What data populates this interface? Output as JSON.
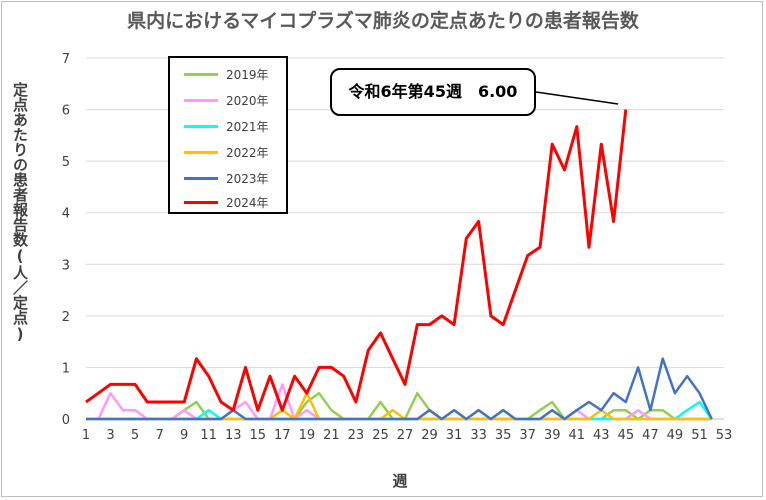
{
  "chart_data": {
    "type": "line",
    "title": "県内におけるマイコプラズマ肺炎の定点あたりの患者報告数",
    "xlabel": "週",
    "ylabel": "定点あたりの患者報告数(人／定点)",
    "ylim": [
      0,
      7
    ],
    "y_ticks": [
      "0",
      "1",
      "2",
      "3",
      "4",
      "5",
      "6",
      "7"
    ],
    "x_ticks": [
      "1",
      "3",
      "5",
      "7",
      "9",
      "11",
      "13",
      "15",
      "17",
      "19",
      "21",
      "23",
      "25",
      "27",
      "29",
      "31",
      "33",
      "35",
      "37",
      "39",
      "41",
      "43",
      "45",
      "47",
      "49",
      "51",
      "53"
    ],
    "x_range": [
      1,
      53
    ],
    "legend_position": "top-left",
    "annotation": "令和6年第45週　6.00",
    "series": [
      {
        "name": "2019年",
        "color": "#92d050",
        "values": [
          0,
          0,
          0,
          0,
          0,
          0,
          0,
          0,
          0.17,
          0.33,
          0,
          0,
          0,
          0,
          0,
          0,
          0,
          0,
          0.33,
          0.5,
          0.17,
          0,
          0,
          0,
          0.33,
          0,
          0,
          0.5,
          0.17,
          0,
          0,
          0,
          0,
          0,
          0,
          0,
          0,
          0.17,
          0.33,
          0,
          0,
          0,
          0,
          0.17,
          0.17,
          0,
          0.17,
          0.17,
          0,
          0,
          0,
          0
        ]
      },
      {
        "name": "2020年",
        "color": "#ff99ff",
        "values": [
          0,
          0,
          0.5,
          0.17,
          0.17,
          0,
          0,
          0,
          0.17,
          0,
          0,
          0,
          0.17,
          0.33,
          0,
          0,
          0.67,
          0,
          0.17,
          0,
          0,
          0,
          0,
          0,
          0,
          0,
          0,
          0,
          0,
          0,
          0,
          0,
          0,
          0,
          0,
          0,
          0,
          0,
          0,
          0,
          0.17,
          0,
          0,
          0,
          0,
          0.17,
          0,
          0,
          0,
          0,
          0,
          0
        ]
      },
      {
        "name": "2021年",
        "color": "#00ffff",
        "values": [
          0,
          0,
          0,
          0,
          0,
          0,
          0,
          0,
          0,
          0,
          0.17,
          0,
          0,
          0,
          0,
          0,
          0,
          0,
          0,
          0,
          0,
          0,
          0,
          0,
          0,
          0,
          0,
          0,
          0,
          0,
          0,
          0,
          0,
          0,
          0.17,
          0,
          0,
          0,
          0,
          0,
          0,
          0,
          0,
          0,
          0,
          0,
          0,
          0,
          0,
          0.17,
          0.33,
          0
        ]
      },
      {
        "name": "2022年",
        "color": "#ffc000",
        "values": [
          0,
          0,
          0,
          0,
          0,
          0,
          0,
          0,
          0,
          0,
          0,
          0,
          0,
          0,
          0,
          0,
          0.17,
          0,
          0.5,
          0,
          0,
          0,
          0,
          0,
          0,
          0.17,
          0,
          0,
          0,
          0,
          0,
          0,
          0,
          0,
          0,
          0,
          0,
          0,
          0,
          0,
          0,
          0,
          0.17,
          0,
          0,
          0,
          0,
          0,
          0,
          0,
          0,
          0
        ]
      },
      {
        "name": "2023年",
        "color": "#4472c4",
        "values": [
          0,
          0,
          0,
          0,
          0,
          0,
          0,
          0,
          0,
          0,
          0,
          0,
          0.17,
          0,
          0,
          0,
          0,
          0,
          0,
          0,
          0,
          0,
          0,
          0,
          0,
          0,
          0,
          0,
          0.17,
          0,
          0.17,
          0,
          0.17,
          0,
          0.17,
          0,
          0,
          0,
          0.17,
          0,
          0.17,
          0.33,
          0.17,
          0.5,
          0.33,
          1.0,
          0.17,
          1.17,
          0.5,
          0.83,
          0.5,
          0
        ]
      },
      {
        "name": "2024年",
        "color": "#ff0000",
        "values": [
          0.33,
          0.5,
          0.67,
          0.67,
          0.67,
          0.33,
          0.33,
          0.33,
          0.33,
          1.17,
          0.83,
          0.33,
          0.17,
          1.0,
          0.17,
          0.83,
          0.17,
          0.83,
          0.5,
          1.0,
          1.0,
          0.83,
          0.33,
          1.33,
          1.67,
          1.17,
          0.67,
          1.83,
          1.83,
          2.0,
          1.83,
          3.5,
          3.83,
          2.0,
          1.83,
          2.5,
          3.17,
          3.33,
          5.33,
          4.83,
          5.67,
          3.33,
          5.33,
          3.83,
          6.0
        ]
      }
    ]
  }
}
